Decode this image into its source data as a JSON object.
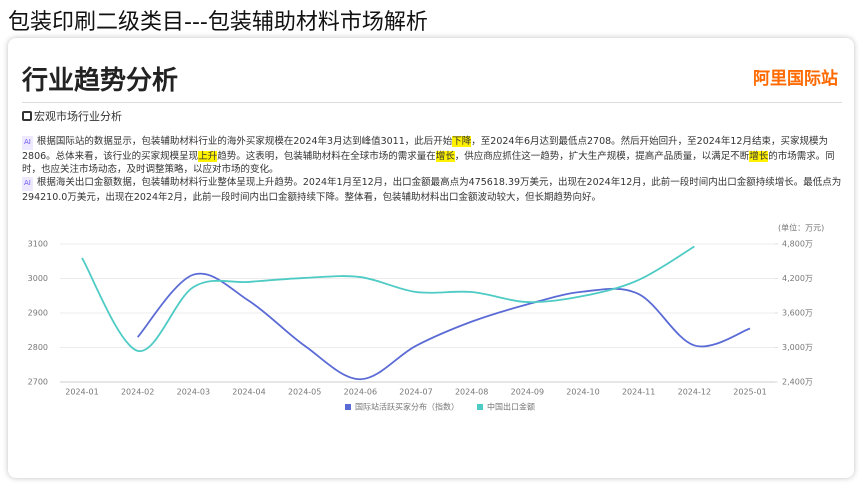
{
  "header": {
    "title": "包装印刷二级类目---包装辅助材料市场解析"
  },
  "card": {
    "title": "行业趋势分析",
    "logo": "阿里国际站",
    "section": "宏观市场行业分析",
    "paragraphs": [
      [
        {
          "text": "根据国际站的数据显示，包装辅助材料行业的海外买家规模在2024年3月达到峰值3011，此后开始",
          "highlight": false
        },
        {
          "text": "下降",
          "highlight": true
        },
        {
          "text": "，至2024年6月达到最低点2708。然后开始回升，至2024年12月结束，买家规模为2806。总体来看，该行业的买家规模呈现",
          "highlight": false
        },
        {
          "text": "上升",
          "highlight": true
        },
        {
          "text": "趋势。这表明，包装辅助材料在全球市场的需求量在",
          "highlight": false
        },
        {
          "text": "增长",
          "highlight": true
        },
        {
          "text": "，供应商应抓住这一趋势，扩大生产规模，提高产品质量，以满足不断",
          "highlight": false
        },
        {
          "text": "增长",
          "highlight": true
        },
        {
          "text": "的市场需求。同时，也应关注市场动态，及时调整策略，以应对市场的变化。",
          "highlight": false
        }
      ],
      [
        {
          "text": "根据海关出口金额数据，包装辅助材料行业整体呈现上升趋势。2024年1月至12月，出口金额最高点为475618.39万美元，出现在2024年12月，此前一段时间内出口金额持续增长。最低点为294210.0万美元，出现在2024年2月，此前一段时间内出口金额持续下降。整体看，包装辅助材料出口金额波动较大，但长期趋势向好。",
          "highlight": false
        }
      ]
    ]
  },
  "chart_data": {
    "type": "line",
    "y2_label": "(单位：万元)",
    "categories": [
      "2024-01",
      "2024-02",
      "2024-03",
      "2024-04",
      "2024-05",
      "2024-06",
      "2024-07",
      "2024-08",
      "2024-09",
      "2024-10",
      "2024-11",
      "2024-12",
      "2025-01"
    ],
    "series": [
      {
        "name": "国际站活跃买家分布（指数）",
        "color": "#5b6bd6",
        "axis": "y",
        "values": [
          null,
          2830,
          3011,
          2935,
          2805,
          2708,
          2805,
          2875,
          2925,
          2962,
          2955,
          2806,
          2855
        ]
      },
      {
        "name": "中国出口金额",
        "color": "#4ecbc4",
        "axis": "y2",
        "values": [
          4557,
          2942,
          4050,
          4140,
          4210,
          4225,
          3965,
          3965,
          3790,
          3895,
          4175,
          4756,
          null
        ]
      }
    ],
    "ylim": [
      2700,
      3100
    ],
    "yticks": [
      2700,
      2800,
      2900,
      3000,
      3100
    ],
    "y2lim": [
      2400,
      4800
    ],
    "y2ticks": [
      {
        "value": 2400,
        "label": "2,400万"
      },
      {
        "value": 3000,
        "label": "3,000万"
      },
      {
        "value": 3600,
        "label": "3,600万"
      },
      {
        "value": 4200,
        "label": "4,200万"
      },
      {
        "value": 4800,
        "label": "4,800万"
      }
    ],
    "grid": true,
    "legend": "bottom"
  }
}
